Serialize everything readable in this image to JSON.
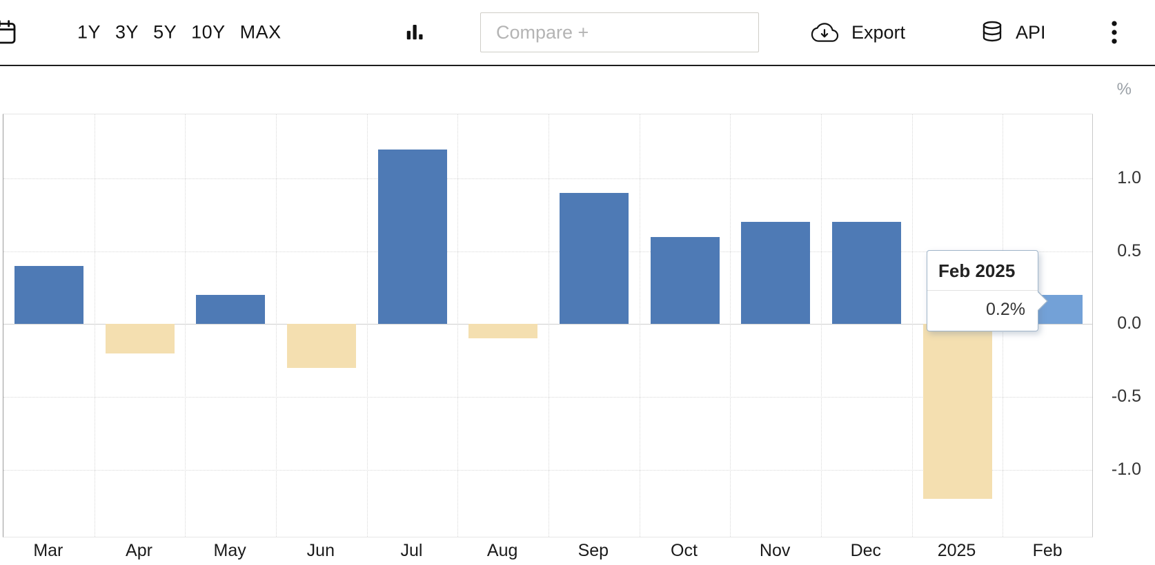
{
  "toolbar": {
    "ranges": [
      {
        "label": "1Y"
      },
      {
        "label": "3Y"
      },
      {
        "label": "5Y"
      },
      {
        "label": "10Y"
      },
      {
        "label": "MAX"
      }
    ],
    "compare_placeholder": "Compare +",
    "export_label": "Export",
    "api_label": "API"
  },
  "tooltip": {
    "title": "Feb 2025",
    "value": "0.2%"
  },
  "chart_data": {
    "type": "bar",
    "title": "",
    "categories": [
      "Mar",
      "Apr",
      "May",
      "Jun",
      "Jul",
      "Aug",
      "Sep",
      "Oct",
      "Nov",
      "Dec",
      "2025",
      "Feb"
    ],
    "values": [
      0.4,
      -0.2,
      0.2,
      -0.3,
      1.2,
      -0.1,
      0.9,
      0.6,
      0.7,
      0.7,
      -1.2,
      0.2
    ],
    "xlabel": "",
    "ylabel": "%",
    "yticks": [
      1.0,
      0.5,
      0.0,
      -0.5,
      -1.0
    ],
    "ytick_labels": [
      "1.0",
      "0.5",
      "0.0",
      "-0.5",
      "-1.0"
    ],
    "ylim": [
      -1.47,
      1.44
    ],
    "grid": "dotted",
    "legend": "none",
    "axis_side": "right",
    "highlighted_index": 11,
    "highlighted_label": "Feb 2025",
    "highlighted_value": "0.2%",
    "colors": {
      "positive": "#4e7ab5",
      "negative": "#f4dfb0",
      "highlight": "#73a1d7"
    }
  }
}
